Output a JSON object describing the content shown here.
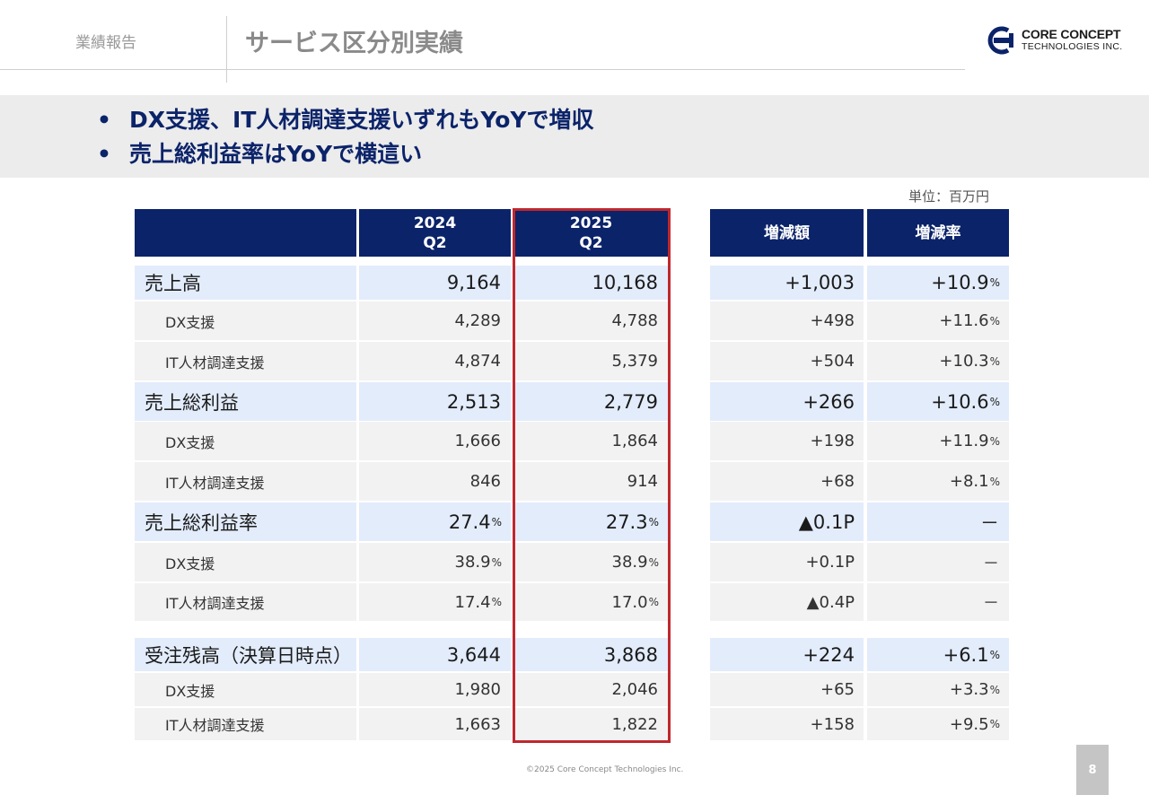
{
  "header": {
    "section": "業績報告",
    "title": "サービス区分別実績"
  },
  "logo": {
    "line1": "CORE CONCEPT",
    "line2": "TECHNOLOGIES INC."
  },
  "bullets": [
    "DX支援、IT人材調達支援いずれもYoYで増収",
    "売上総利益率はYoYで横這い"
  ],
  "unit": "単位：百万円",
  "columns": {
    "y2024_line1": "2024",
    "y2024_line2": "Q2",
    "y2025_line1": "2025",
    "y2025_line2": "Q2",
    "diff": "増減額",
    "rate": "増減率"
  },
  "rows": [
    {
      "label": "売上高",
      "v2024": "9,164",
      "v2024_unit": "",
      "v2025": "10,168",
      "v2025_unit": "",
      "diff": "+1,003",
      "rate": "+10.9",
      "rate_unit": "%"
    },
    {
      "label": "DX支援",
      "v2024": "4,289",
      "v2024_unit": "",
      "v2025": "4,788",
      "v2025_unit": "",
      "diff": "+498",
      "rate": "+11.6",
      "rate_unit": "%"
    },
    {
      "label": "IT人材調達支援",
      "v2024": "4,874",
      "v2024_unit": "",
      "v2025": "5,379",
      "v2025_unit": "",
      "diff": "+504",
      "rate": "+10.3",
      "rate_unit": "%"
    },
    {
      "label": "売上総利益",
      "v2024": "2,513",
      "v2024_unit": "",
      "v2025": "2,779",
      "v2025_unit": "",
      "diff": "+266",
      "rate": "+10.6",
      "rate_unit": "%"
    },
    {
      "label": "DX支援",
      "v2024": "1,666",
      "v2024_unit": "",
      "v2025": "1,864",
      "v2025_unit": "",
      "diff": "+198",
      "rate": "+11.9",
      "rate_unit": "%"
    },
    {
      "label": "IT人材調達支援",
      "v2024": "846",
      "v2024_unit": "",
      "v2025": "914",
      "v2025_unit": "",
      "diff": "+68",
      "rate": "+8.1",
      "rate_unit": "%"
    },
    {
      "label": "売上総利益率",
      "v2024": "27.4",
      "v2024_unit": "%",
      "v2025": "27.3",
      "v2025_unit": "%",
      "diff": "▲0.1P",
      "rate": "－",
      "rate_unit": ""
    },
    {
      "label": "DX支援",
      "v2024": "38.9",
      "v2024_unit": "%",
      "v2025": "38.9",
      "v2025_unit": "%",
      "diff": "+0.1P",
      "rate": "－",
      "rate_unit": ""
    },
    {
      "label": "IT人材調達支援",
      "v2024": "17.4",
      "v2024_unit": "%",
      "v2025": "17.0",
      "v2025_unit": "%",
      "diff": "▲0.4P",
      "rate": "－",
      "rate_unit": ""
    },
    {
      "label": "受注残高（決算日時点）",
      "v2024": "3,644",
      "v2024_unit": "",
      "v2025": "3,868",
      "v2025_unit": "",
      "diff": "+224",
      "rate": "+6.1",
      "rate_unit": "%"
    },
    {
      "label": "DX支援",
      "v2024": "1,980",
      "v2024_unit": "",
      "v2025": "2,046",
      "v2025_unit": "",
      "diff": "+65",
      "rate": "+3.3",
      "rate_unit": "%"
    },
    {
      "label": "IT人材調達支援",
      "v2024": "1,663",
      "v2024_unit": "",
      "v2025": "1,822",
      "v2025_unit": "",
      "diff": "+158",
      "rate": "+9.5",
      "rate_unit": "%"
    }
  ],
  "footer": "©2025 Core Concept Technologies Inc.",
  "page_number": "8",
  "colors": {
    "header_navy": "#0b2369",
    "major_row": "#e3ecfb",
    "minor_row": "#f2f2f2",
    "highlight_border": "#c0272d"
  }
}
